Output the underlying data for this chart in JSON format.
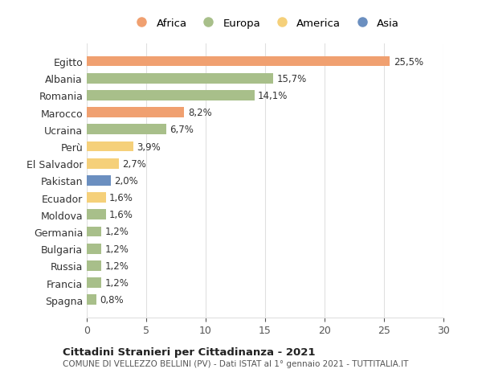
{
  "countries": [
    "Egitto",
    "Albania",
    "Romania",
    "Marocco",
    "Ucraina",
    "Perù",
    "El Salvador",
    "Pakistan",
    "Ecuador",
    "Moldova",
    "Germania",
    "Bulgaria",
    "Russia",
    "Francia",
    "Spagna"
  ],
  "values": [
    25.5,
    15.7,
    14.1,
    8.2,
    6.7,
    3.9,
    2.7,
    2.0,
    1.6,
    1.6,
    1.2,
    1.2,
    1.2,
    1.2,
    0.8
  ],
  "labels": [
    "25,5%",
    "15,7%",
    "14,1%",
    "8,2%",
    "6,7%",
    "3,9%",
    "2,7%",
    "2,0%",
    "1,6%",
    "1,6%",
    "1,2%",
    "1,2%",
    "1,2%",
    "1,2%",
    "0,8%"
  ],
  "continents": [
    "Africa",
    "Europa",
    "Europa",
    "Africa",
    "Europa",
    "America",
    "America",
    "Asia",
    "America",
    "Europa",
    "Europa",
    "Europa",
    "Europa",
    "Europa",
    "Europa"
  ],
  "continent_colors": {
    "Africa": "#F0A070",
    "Europa": "#A8BF8A",
    "America": "#F5D07A",
    "Asia": "#6B8FC0"
  },
  "legend_order": [
    "Africa",
    "Europa",
    "America",
    "Asia"
  ],
  "title1": "Cittadini Stranieri per Cittadinanza - 2021",
  "title2": "COMUNE DI VELLEZZO BELLINI (PV) - Dati ISTAT al 1° gennaio 2021 - TUTTITALIA.IT",
  "xlim": [
    0,
    30
  ],
  "xticks": [
    0,
    5,
    10,
    15,
    20,
    25,
    30
  ],
  "background_color": "#ffffff",
  "grid_color": "#e0e0e0"
}
